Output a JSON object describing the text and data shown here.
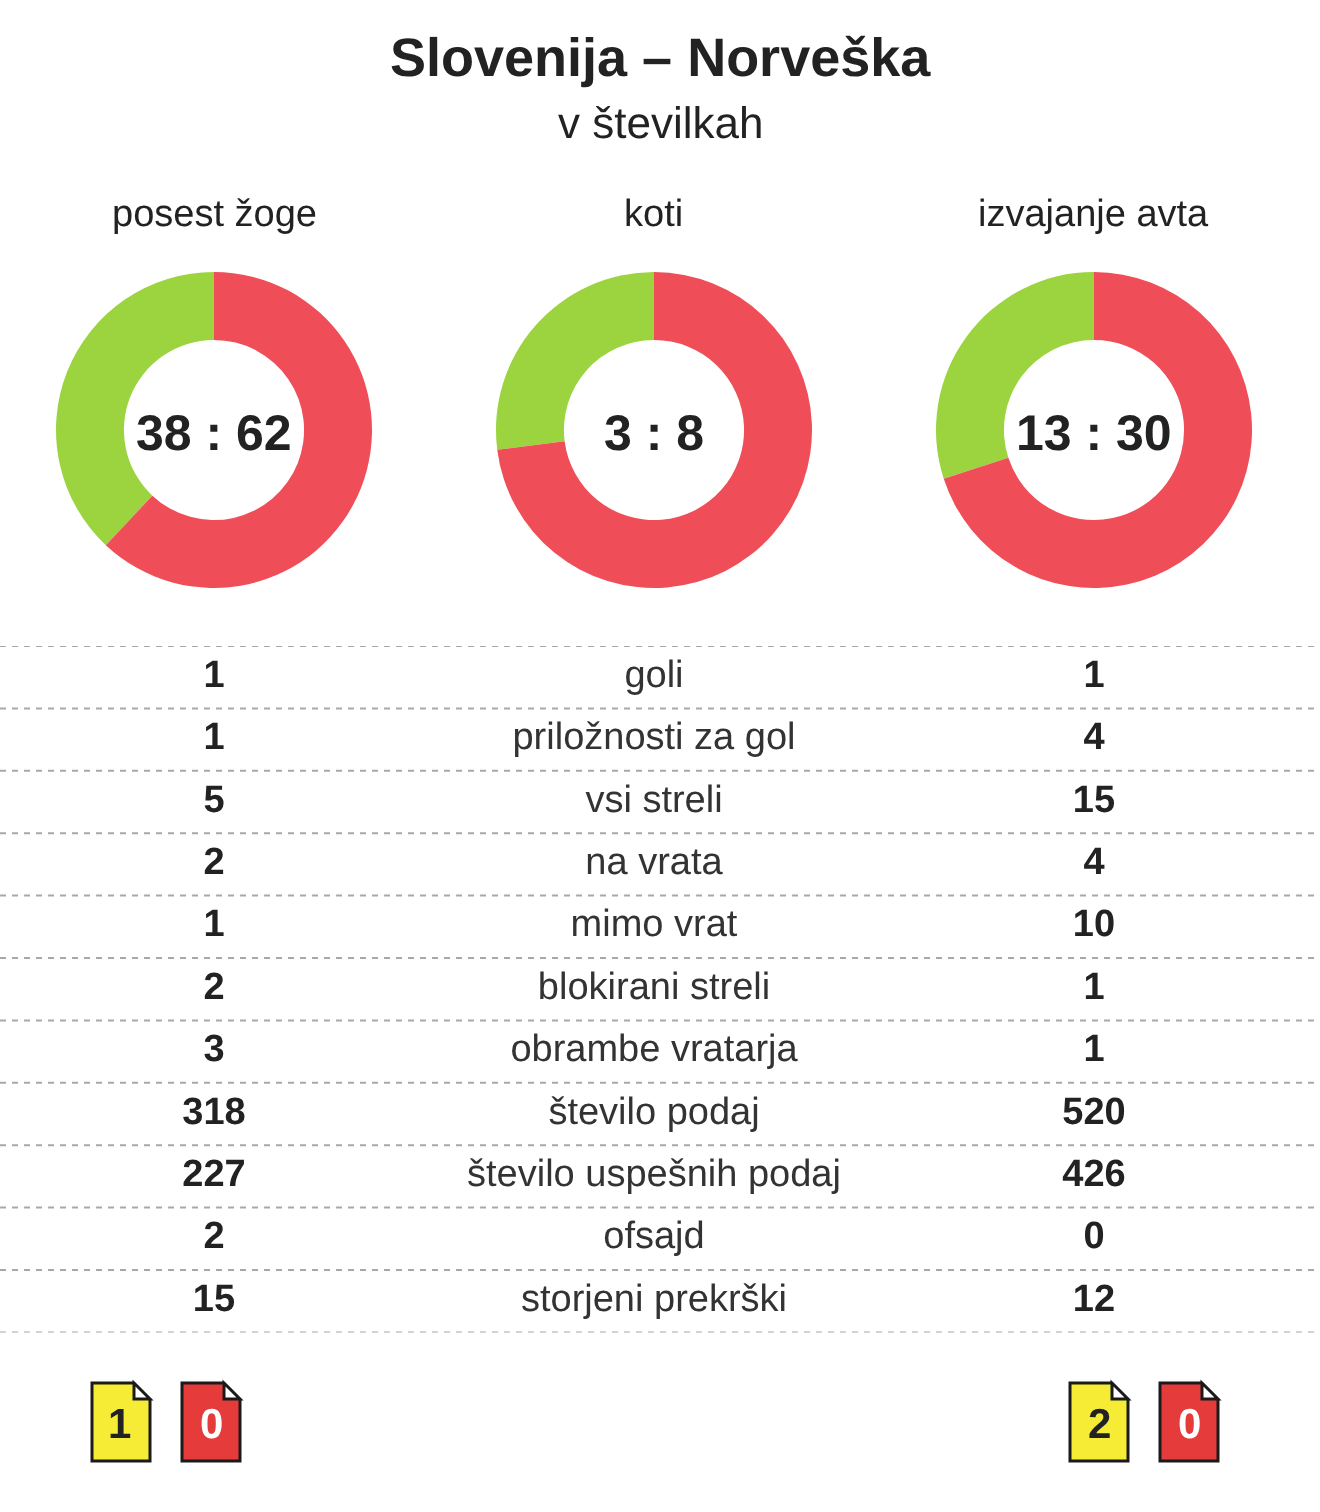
{
  "chart_data": [
    {
      "type": "other",
      "title": "Slovenija – Norveška",
      "subtitle": "v številkah"
    },
    {
      "type": "donut",
      "title": "posest žoge",
      "categories": [
        null,
        null
      ],
      "values": [
        38,
        62
      ],
      "colors": [
        "#9bd43f",
        "#ef4d57"
      ],
      "annotations": [
        "38 : 62"
      ]
    },
    {
      "type": "donut",
      "title": "koti",
      "categories": [
        null,
        null
      ],
      "values": [
        27,
        73
      ],
      "colors": [
        "#9bd43f",
        "#ef4d57"
      ],
      "annotations": [
        "3 : 8"
      ]
    },
    {
      "type": "donut",
      "title": "izvajanje avta",
      "categories": [
        null,
        null
      ],
      "values": [
        30,
        70
      ],
      "colors": [
        "#9bd43f",
        "#ef4d57"
      ],
      "annotations": [
        "13 : 30"
      ]
    },
    {
      "type": "other",
      "categories": [
        "goli",
        "priložnosti za gol",
        "vsi streli",
        "na vrata",
        "mimo vrat",
        "blokirani streli",
        "obrambe vratarja",
        "število podaj",
        "število uspešnih podaj",
        "ofsajd",
        "storjeni prekrški"
      ],
      "series": [
        {
          "values": [
            1,
            1,
            5,
            2,
            1,
            2,
            3,
            318,
            227,
            2,
            15
          ]
        },
        {
          "values": [
            1,
            4,
            15,
            4,
            10,
            1,
            1,
            520,
            426,
            0,
            12
          ]
        }
      ],
      "data_labels": true
    },
    {
      "type": "other",
      "annotations": [
        "1",
        "0",
        "2",
        "0"
      ]
    }
  ]
}
